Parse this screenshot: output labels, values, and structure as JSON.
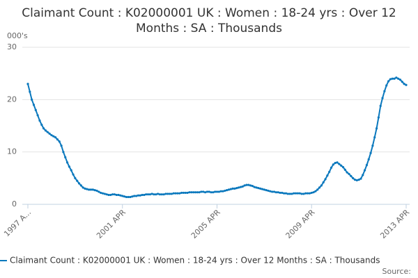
{
  "chart_data": {
    "type": "line",
    "title": "Claimant Count : K02000001 UK : Women : 18-24 yrs : Over 12 Months : SA : Thousands",
    "y_unit": "000's",
    "source": "Source:",
    "categories": [
      "1997 A...",
      null,
      null,
      null,
      null,
      null,
      null,
      null,
      null,
      null,
      null,
      null,
      null,
      null,
      null,
      null,
      null,
      null,
      null,
      null,
      null,
      null,
      null,
      null,
      null,
      null,
      null,
      null,
      null,
      null,
      null,
      null,
      null,
      null,
      null,
      null,
      null,
      null,
      null,
      null,
      null,
      null,
      null,
      null,
      null,
      null,
      null,
      null,
      "2001 APR",
      null,
      null,
      null,
      null,
      null,
      null,
      null,
      null,
      null,
      null,
      null,
      null,
      null,
      null,
      null,
      null,
      null,
      null,
      null,
      null,
      null,
      null,
      null,
      null,
      null,
      null,
      null,
      null,
      null,
      null,
      null,
      null,
      null,
      null,
      null,
      null,
      null,
      null,
      null,
      null,
      null,
      null,
      null,
      null,
      null,
      null,
      null,
      "2005 APR",
      null,
      null,
      null,
      null,
      null,
      null,
      null,
      null,
      null,
      null,
      null,
      null,
      null,
      null,
      null,
      null,
      null,
      null,
      null,
      null,
      null,
      null,
      null,
      null,
      null,
      null,
      null,
      null,
      null,
      null,
      null,
      null,
      null,
      null,
      null,
      null,
      null,
      null,
      null,
      null,
      null,
      null,
      null,
      null,
      null,
      null,
      null,
      "2009 APR",
      null,
      null,
      null,
      null,
      null,
      null,
      null,
      null,
      null,
      null,
      null,
      null,
      null,
      null,
      null,
      null,
      null,
      null,
      null,
      null,
      null,
      null,
      null,
      null,
      null,
      null,
      null,
      null,
      null,
      null,
      null,
      null,
      null,
      null,
      null,
      null,
      null,
      null,
      null,
      null,
      null,
      null,
      null,
      null,
      null,
      null,
      null,
      "2013 APR"
    ],
    "series": [
      {
        "name": "Claimant Count : K02000001 UK : Women : 18-24 yrs : Over 12 Months : SA : Thousands",
        "color": "#0a78bd",
        "values": [
          23.0,
          21.5,
          20.0,
          19.0,
          18.0,
          17.0,
          16.0,
          15.2,
          14.5,
          14.1,
          13.8,
          13.5,
          13.2,
          13.0,
          12.8,
          12.4,
          12.0,
          11.2,
          10.0,
          9.0,
          8.0,
          7.2,
          6.5,
          5.7,
          5.0,
          4.5,
          4.0,
          3.6,
          3.2,
          3.0,
          2.9,
          2.8,
          2.8,
          2.8,
          2.7,
          2.6,
          2.4,
          2.2,
          2.1,
          2.0,
          1.9,
          1.8,
          1.8,
          1.9,
          1.9,
          1.8,
          1.8,
          1.7,
          1.6,
          1.5,
          1.4,
          1.4,
          1.4,
          1.5,
          1.6,
          1.6,
          1.7,
          1.7,
          1.8,
          1.8,
          1.9,
          1.9,
          1.9,
          2.0,
          1.9,
          1.9,
          2.0,
          1.9,
          1.9,
          1.9,
          2.0,
          2.0,
          2.0,
          2.0,
          2.1,
          2.1,
          2.1,
          2.1,
          2.2,
          2.2,
          2.2,
          2.2,
          2.3,
          2.3,
          2.3,
          2.3,
          2.3,
          2.3,
          2.4,
          2.4,
          2.3,
          2.4,
          2.4,
          2.3,
          2.3,
          2.4,
          2.4,
          2.4,
          2.5,
          2.5,
          2.6,
          2.7,
          2.8,
          2.9,
          3.0,
          3.0,
          3.1,
          3.2,
          3.3,
          3.4,
          3.6,
          3.7,
          3.7,
          3.6,
          3.5,
          3.3,
          3.2,
          3.1,
          3.0,
          2.9,
          2.8,
          2.7,
          2.6,
          2.5,
          2.4,
          2.4,
          2.3,
          2.3,
          2.2,
          2.2,
          2.1,
          2.1,
          2.0,
          2.0,
          2.0,
          2.1,
          2.1,
          2.1,
          2.1,
          2.0,
          2.0,
          2.1,
          2.1,
          2.1,
          2.2,
          2.3,
          2.5,
          2.8,
          3.2,
          3.6,
          4.2,
          4.8,
          5.5,
          6.2,
          7.0,
          7.6,
          7.9,
          8.0,
          7.7,
          7.4,
          7.1,
          6.6,
          6.1,
          5.8,
          5.4,
          5.0,
          4.7,
          4.6,
          4.7,
          4.9,
          5.6,
          6.5,
          7.5,
          8.6,
          9.8,
          11.2,
          12.8,
          14.5,
          16.6,
          18.8,
          20.3,
          21.6,
          22.7,
          23.5,
          23.9,
          24.0,
          24.0,
          24.2,
          24.0,
          23.8,
          23.4,
          23.0,
          22.8
        ]
      }
    ],
    "ylim": [
      0,
      30
    ],
    "yticks": [
      0,
      10,
      20,
      30
    ],
    "grid": true
  }
}
